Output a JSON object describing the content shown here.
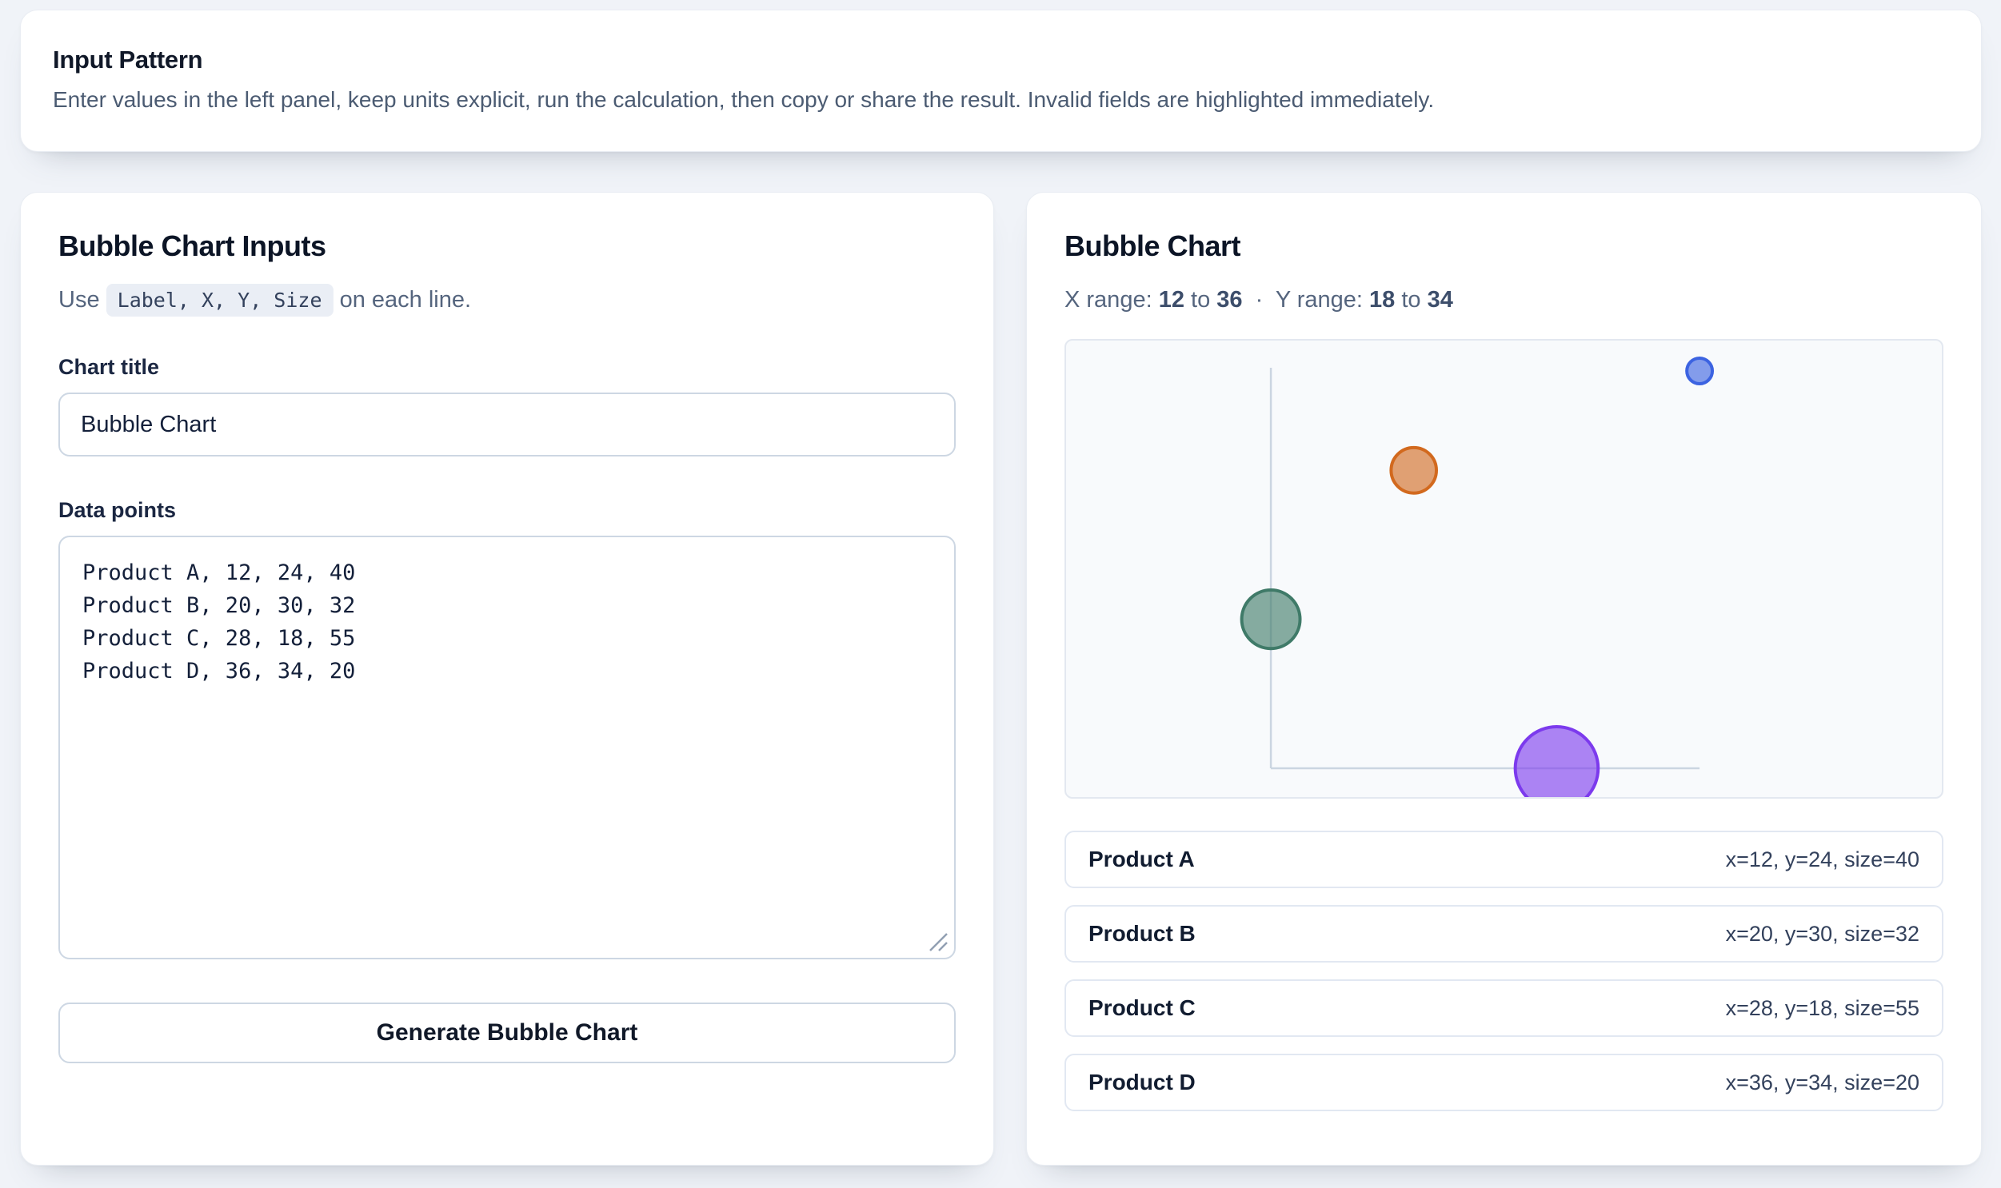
{
  "banner": {
    "title": "Input Pattern",
    "description": "Enter values in the left panel, keep units explicit, run the calculation, then copy or share the result. Invalid fields are highlighted immediately."
  },
  "inputs_panel": {
    "title": "Bubble Chart Inputs",
    "help_prefix": "Use",
    "help_code": "Label, X, Y, Size",
    "help_suffix": "on each line.",
    "chart_title_label": "Chart title",
    "chart_title_value": "Bubble Chart",
    "data_points_label": "Data points",
    "data_points_value": "Product A, 12, 24, 40\nProduct B, 20, 30, 32\nProduct C, 28, 18, 55\nProduct D, 36, 34, 20",
    "generate_button": "Generate Bubble Chart"
  },
  "chart_panel": {
    "title": "Bubble Chart",
    "x_range_label": "X range:",
    "x_min": "12",
    "x_max": "36",
    "to_word": "to",
    "separator": "·",
    "y_range_label": "Y range:",
    "y_min": "18",
    "y_max": "34"
  },
  "chart_data": {
    "type": "scatter",
    "subtype": "bubble",
    "title": "Bubble Chart",
    "xlabel": "",
    "ylabel": "",
    "xlim": [
      12,
      36
    ],
    "ylim": [
      18,
      34
    ],
    "grid": false,
    "legend_position": "below-as-rows",
    "points": [
      {
        "label": "Product A",
        "x": 12,
        "y": 24,
        "size": 40,
        "color": "#3f7a68",
        "detail": "x=12, y=24, size=40"
      },
      {
        "label": "Product B",
        "x": 20,
        "y": 30,
        "size": 32,
        "color": "#d2691e",
        "detail": "x=20, y=30, size=32"
      },
      {
        "label": "Product C",
        "x": 28,
        "y": 18,
        "size": 55,
        "color": "#7c3aed",
        "detail": "x=28, y=18, size=55"
      },
      {
        "label": "Product D",
        "x": 36,
        "y": 34,
        "size": 20,
        "color": "#3c63e1",
        "detail": "x=36, y=34, size=20"
      }
    ],
    "colors": {
      "axis": "#cbd5e1",
      "plot_background": "#f8fafc"
    }
  }
}
